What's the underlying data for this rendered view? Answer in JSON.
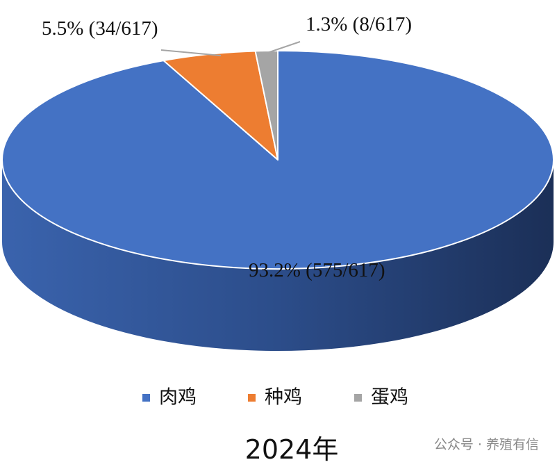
{
  "chart_data": {
    "type": "pie3d",
    "title": "2024年",
    "categories": [
      "肉鸡",
      "种鸡",
      "蛋鸡"
    ],
    "values": [
      93.2,
      5.5,
      1.3
    ],
    "value_labels": [
      "93.2% (575/617)",
      "5.5% (34/617)",
      "1.3% (8/617)"
    ],
    "colors": [
      "#4472c4",
      "#ed7d31",
      "#a5a5a5"
    ],
    "legend": "bottom"
  },
  "watermark": "公众号 · 养殖有信"
}
